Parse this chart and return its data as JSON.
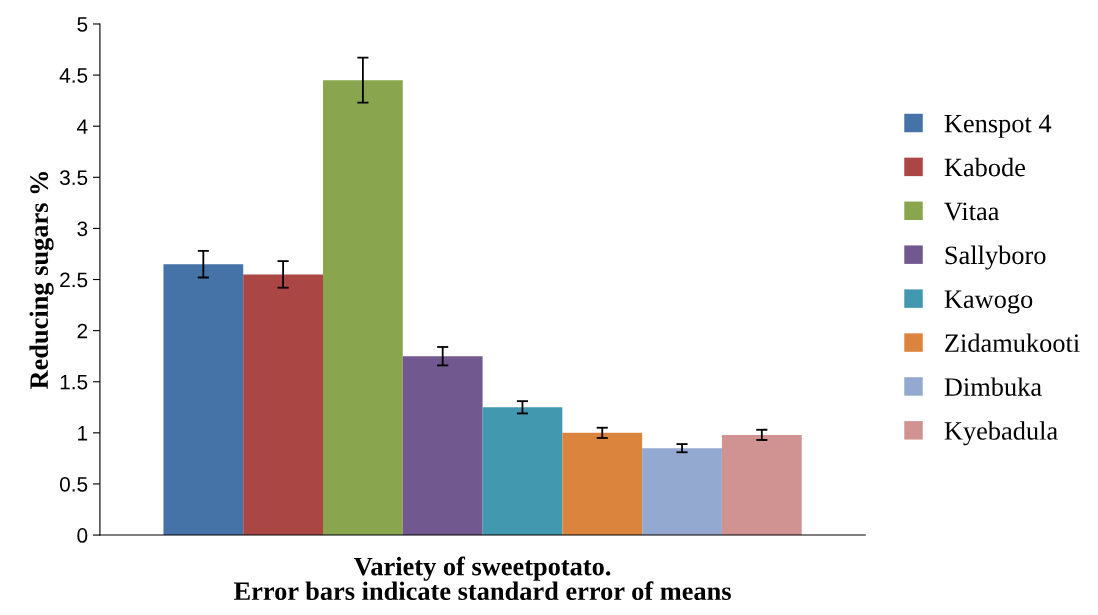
{
  "chart_data": {
    "type": "bar",
    "xlabel": "Variety of sweetpotato.",
    "ylabel": "Reducing sugars %",
    "annotations": [
      "Error bars indicate standard error of means"
    ],
    "categories": [
      null
    ],
    "series": [
      {
        "name": "Kenspot 4",
        "color": "#4572a7",
        "values": [
          2.65
        ],
        "errors": [
          0.13
        ]
      },
      {
        "name": "Kabode",
        "color": "#aa4643",
        "values": [
          2.55
        ],
        "errors": [
          0.13
        ]
      },
      {
        "name": "Vitaa",
        "color": "#89a54e",
        "values": [
          4.45
        ],
        "errors": [
          0.22
        ]
      },
      {
        "name": "Sallyboro",
        "color": "#71588f",
        "values": [
          1.75
        ],
        "errors": [
          0.09
        ]
      },
      {
        "name": "Kawogo",
        "color": "#4198af",
        "values": [
          1.25
        ],
        "errors": [
          0.06
        ]
      },
      {
        "name": "Zidamukooti",
        "color": "#db843d",
        "values": [
          1.0
        ],
        "errors": [
          0.05
        ]
      },
      {
        "name": "Dimbuka",
        "color": "#93a9cf",
        "values": [
          0.85
        ],
        "errors": [
          0.04
        ]
      },
      {
        "name": "Kyebadula",
        "color": "#d19392",
        "values": [
          0.98
        ],
        "errors": [
          0.05
        ]
      }
    ],
    "ylim": [
      0,
      5
    ],
    "yticks": [
      0,
      0.5,
      1,
      1.5,
      2,
      2.5,
      3,
      3.5,
      4,
      4.5,
      5
    ],
    "grid": false,
    "legend": "right"
  }
}
